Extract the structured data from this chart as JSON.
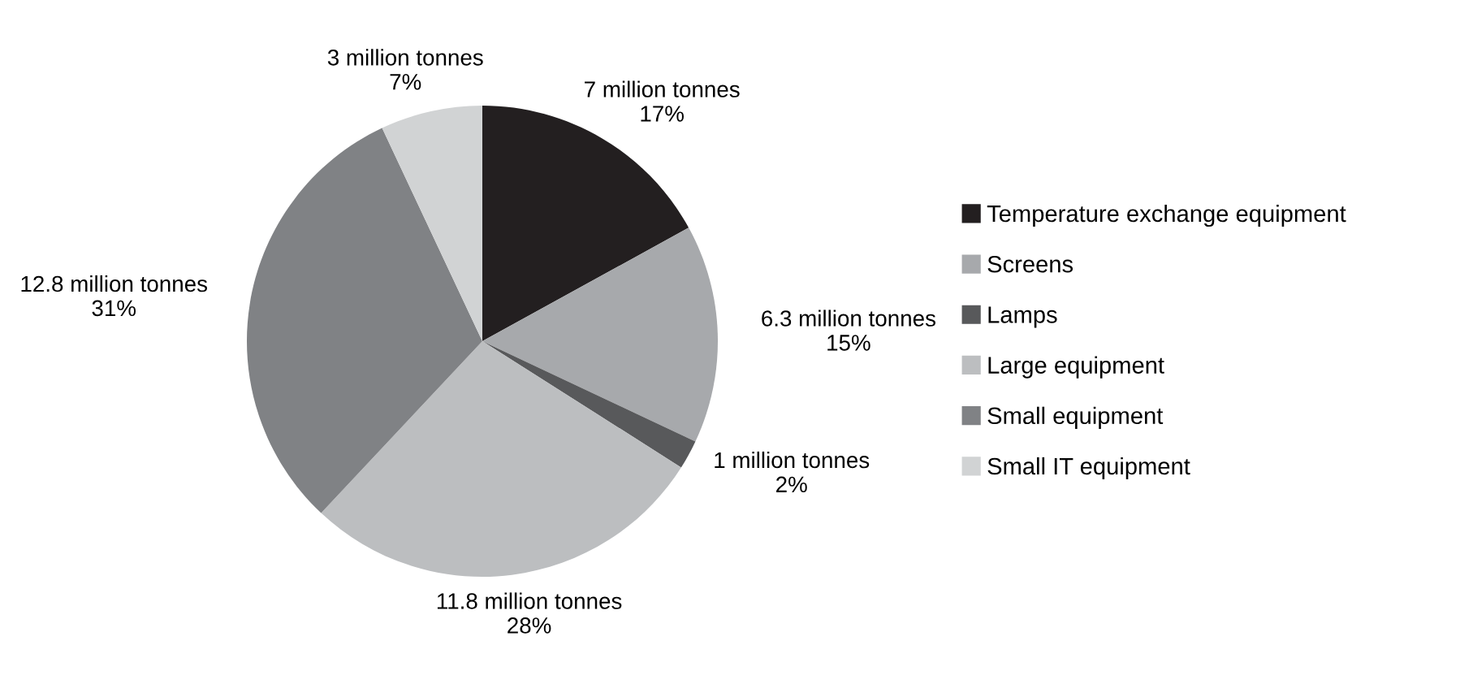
{
  "chart_data": {
    "type": "pie",
    "categories": [
      "Temperature exchange equipment",
      "Screens",
      "Lamps",
      "Large equipment",
      "Small equipment",
      "Small IT equipment"
    ],
    "values": [
      17,
      15,
      2,
      28,
      31,
      7
    ],
    "colors": [
      "#231f20",
      "#a7a9ac",
      "#58595b",
      "#bcbec0",
      "#808285",
      "#d1d3d4"
    ],
    "value_labels": [
      "7 million tonnes\n17%",
      "6.3 million tonnes\n15%",
      "1 million tonnes\n2%",
      "11.8 million tonnes\n28%",
      "12.8 million tonnes\n31%",
      "3 million tonnes\n7%"
    ],
    "legend": "right"
  }
}
